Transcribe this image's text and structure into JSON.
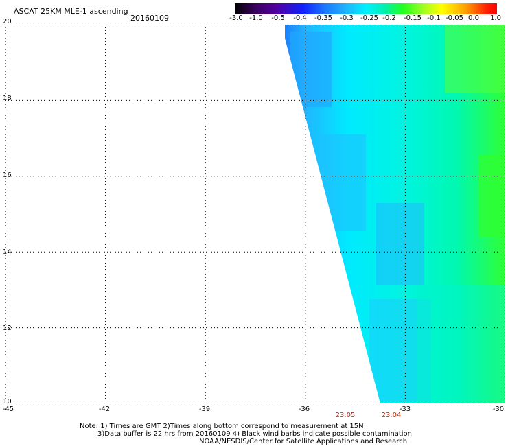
{
  "header": {
    "title": "ASCAT 25KM MLE-1 ascending",
    "date": "20160109"
  },
  "colorbar": {
    "labels": [
      "-3.0",
      "-1.0",
      "-0.5",
      "-0.4",
      "-0.35",
      "-0.3",
      "-0.25",
      "-0.2",
      "-0.15",
      "-0.1",
      "-0.05",
      "0.0",
      "1.0"
    ],
    "colors": [
      "#000000",
      "#5000a0",
      "#1020ff",
      "#1a74ff",
      "#20b0ff",
      "#00f0ff",
      "#00f0b0",
      "#20ff20",
      "#ffff00",
      "#ffa000",
      "#ff0000"
    ]
  },
  "map": {
    "lon_range": [
      -45,
      -30
    ],
    "lat_range": [
      10,
      20
    ],
    "lat_ticks": [
      "20",
      "18",
      "16",
      "14",
      "12",
      "10"
    ],
    "lon_ticks": [
      "-45",
      "-42",
      "-39",
      "-36",
      "-33",
      "-30"
    ],
    "grid": "dotted",
    "times": [
      "23:05",
      "23:04"
    ]
  },
  "notes": {
    "line1": "Note: 1) Times are GMT 2)Times along bottom correspond to measurement at 15N",
    "line2": "3)Data buffer is 22 hrs from 20160109 4) Black wind barbs indicate possible contamination",
    "line3": "NOAA/NESDIS/Center for Satellite Applications and Research"
  }
}
